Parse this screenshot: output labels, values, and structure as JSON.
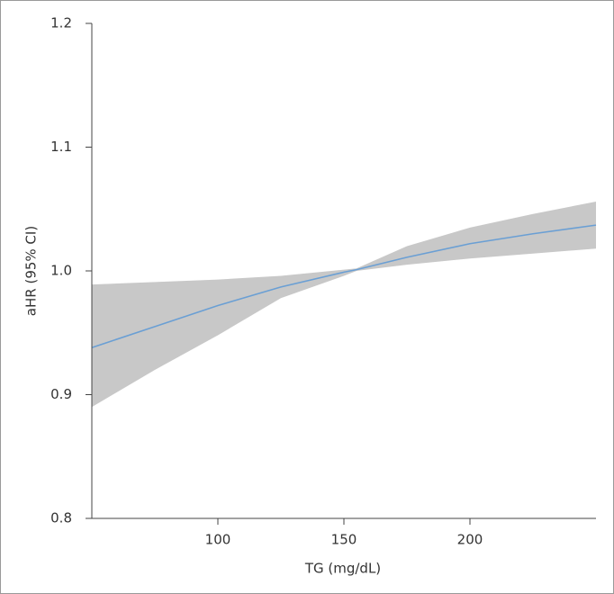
{
  "chart_data": {
    "type": "line_band",
    "xlabel": "TG (mg/dL)",
    "ylabel": "aHR (95% CI)",
    "x": [
      50,
      75,
      100,
      125,
      150,
      155,
      175,
      200,
      225,
      250
    ],
    "values": [
      0.938,
      0.955,
      0.972,
      0.987,
      0.999,
      1.001,
      1.011,
      1.022,
      1.03,
      1.037
    ],
    "lower": [
      0.89,
      0.92,
      0.948,
      0.978,
      0.996,
      1.0,
      1.005,
      1.01,
      1.014,
      1.018
    ],
    "upper": [
      0.989,
      0.991,
      0.993,
      0.996,
      1.001,
      1.002,
      1.02,
      1.035,
      1.046,
      1.056
    ],
    "color": "#6a9fd4",
    "band_color": "#c8c8c8",
    "xlim": [
      50,
      250
    ],
    "xticks": [
      100,
      150,
      200
    ],
    "ylim": [
      0.8,
      1.2
    ],
    "yticks": [
      0.8,
      0.9,
      {
        "value": 1,
        "label": "1.0"
      },
      1.1,
      1.2
    ],
    "grid": false
  }
}
